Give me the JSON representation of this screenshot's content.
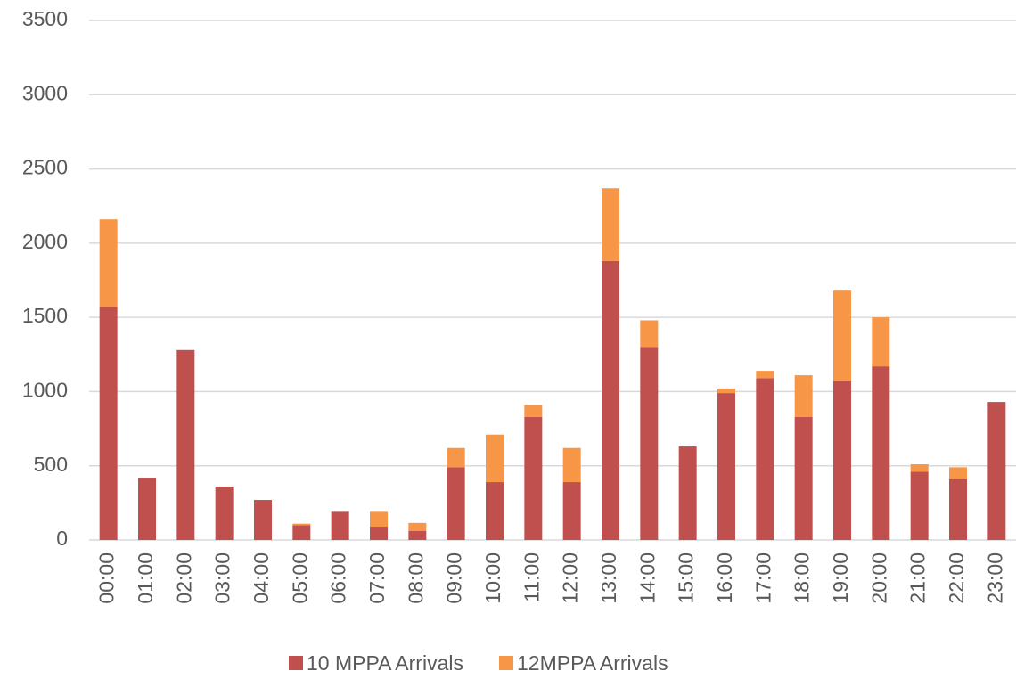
{
  "chart_data": {
    "type": "bar",
    "stacked": true,
    "categories": [
      "00:00",
      "01:00",
      "02:00",
      "03:00",
      "04:00",
      "05:00",
      "06:00",
      "07:00",
      "08:00",
      "09:00",
      "10:00",
      "11:00",
      "12:00",
      "13:00",
      "14:00",
      "15:00",
      "16:00",
      "17:00",
      "18:00",
      "19:00",
      "20:00",
      "21:00",
      "22:00",
      "23:00"
    ],
    "series": [
      {
        "name": "10 MPPA Arrivals",
        "color": "#c0504d",
        "values": [
          1570,
          420,
          1280,
          360,
          270,
          100,
          190,
          90,
          60,
          490,
          390,
          830,
          390,
          1880,
          1300,
          630,
          990,
          1090,
          830,
          1070,
          1170,
          460,
          410,
          930
        ]
      },
      {
        "name": "12MPPA Arrivals",
        "color": "#f79646",
        "values": [
          590,
          0,
          0,
          0,
          0,
          10,
          0,
          100,
          55,
          130,
          320,
          80,
          230,
          490,
          180,
          0,
          30,
          50,
          280,
          610,
          330,
          50,
          80,
          0
        ]
      }
    ],
    "ylim": [
      0,
      3500
    ],
    "yticks": [
      0,
      500,
      1000,
      1500,
      2000,
      2500,
      3000,
      3500
    ],
    "grid": true,
    "legend": "bottom"
  }
}
